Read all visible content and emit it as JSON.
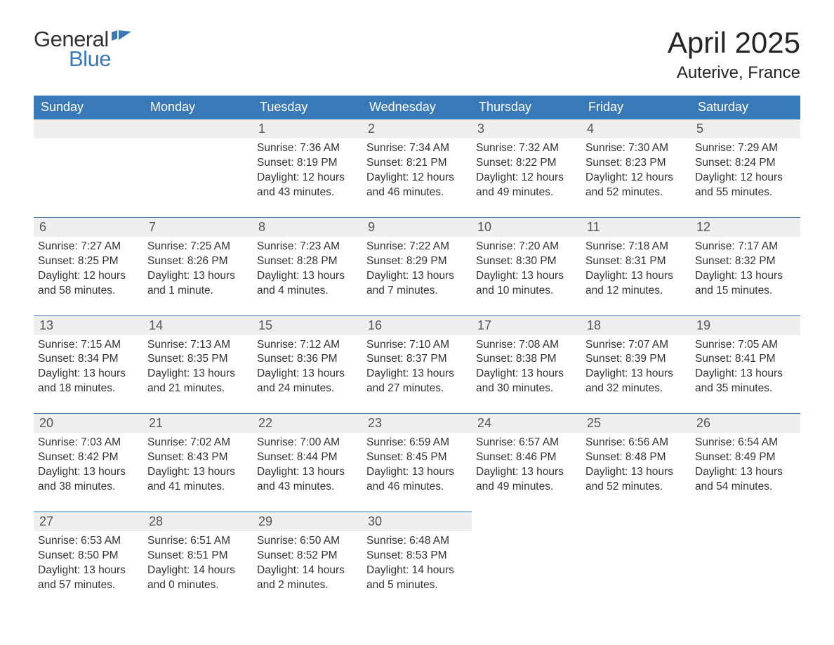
{
  "logo": {
    "word1": "General",
    "word2": "Blue"
  },
  "title": "April 2025",
  "location": "Auterive, France",
  "columns": [
    "Sunday",
    "Monday",
    "Tuesday",
    "Wednesday",
    "Thursday",
    "Friday",
    "Saturday"
  ],
  "colors": {
    "header_bg": "#3a79b7",
    "header_text": "#ffffff",
    "daynum_bg": "#eeeeee",
    "row_border": "#3a79b7",
    "text": "#333333",
    "logo_blue": "#3a79b7"
  },
  "type": "calendar-table",
  "weeks": [
    [
      null,
      null,
      {
        "n": "1",
        "sunrise": "Sunrise: 7:36 AM",
        "sunset": "Sunset: 8:19 PM",
        "day1": "Daylight: 12 hours",
        "day2": "and 43 minutes."
      },
      {
        "n": "2",
        "sunrise": "Sunrise: 7:34 AM",
        "sunset": "Sunset: 8:21 PM",
        "day1": "Daylight: 12 hours",
        "day2": "and 46 minutes."
      },
      {
        "n": "3",
        "sunrise": "Sunrise: 7:32 AM",
        "sunset": "Sunset: 8:22 PM",
        "day1": "Daylight: 12 hours",
        "day2": "and 49 minutes."
      },
      {
        "n": "4",
        "sunrise": "Sunrise: 7:30 AM",
        "sunset": "Sunset: 8:23 PM",
        "day1": "Daylight: 12 hours",
        "day2": "and 52 minutes."
      },
      {
        "n": "5",
        "sunrise": "Sunrise: 7:29 AM",
        "sunset": "Sunset: 8:24 PM",
        "day1": "Daylight: 12 hours",
        "day2": "and 55 minutes."
      }
    ],
    [
      {
        "n": "6",
        "sunrise": "Sunrise: 7:27 AM",
        "sunset": "Sunset: 8:25 PM",
        "day1": "Daylight: 12 hours",
        "day2": "and 58 minutes."
      },
      {
        "n": "7",
        "sunrise": "Sunrise: 7:25 AM",
        "sunset": "Sunset: 8:26 PM",
        "day1": "Daylight: 13 hours",
        "day2": "and 1 minute."
      },
      {
        "n": "8",
        "sunrise": "Sunrise: 7:23 AM",
        "sunset": "Sunset: 8:28 PM",
        "day1": "Daylight: 13 hours",
        "day2": "and 4 minutes."
      },
      {
        "n": "9",
        "sunrise": "Sunrise: 7:22 AM",
        "sunset": "Sunset: 8:29 PM",
        "day1": "Daylight: 13 hours",
        "day2": "and 7 minutes."
      },
      {
        "n": "10",
        "sunrise": "Sunrise: 7:20 AM",
        "sunset": "Sunset: 8:30 PM",
        "day1": "Daylight: 13 hours",
        "day2": "and 10 minutes."
      },
      {
        "n": "11",
        "sunrise": "Sunrise: 7:18 AM",
        "sunset": "Sunset: 8:31 PM",
        "day1": "Daylight: 13 hours",
        "day2": "and 12 minutes."
      },
      {
        "n": "12",
        "sunrise": "Sunrise: 7:17 AM",
        "sunset": "Sunset: 8:32 PM",
        "day1": "Daylight: 13 hours",
        "day2": "and 15 minutes."
      }
    ],
    [
      {
        "n": "13",
        "sunrise": "Sunrise: 7:15 AM",
        "sunset": "Sunset: 8:34 PM",
        "day1": "Daylight: 13 hours",
        "day2": "and 18 minutes."
      },
      {
        "n": "14",
        "sunrise": "Sunrise: 7:13 AM",
        "sunset": "Sunset: 8:35 PM",
        "day1": "Daylight: 13 hours",
        "day2": "and 21 minutes."
      },
      {
        "n": "15",
        "sunrise": "Sunrise: 7:12 AM",
        "sunset": "Sunset: 8:36 PM",
        "day1": "Daylight: 13 hours",
        "day2": "and 24 minutes."
      },
      {
        "n": "16",
        "sunrise": "Sunrise: 7:10 AM",
        "sunset": "Sunset: 8:37 PM",
        "day1": "Daylight: 13 hours",
        "day2": "and 27 minutes."
      },
      {
        "n": "17",
        "sunrise": "Sunrise: 7:08 AM",
        "sunset": "Sunset: 8:38 PM",
        "day1": "Daylight: 13 hours",
        "day2": "and 30 minutes."
      },
      {
        "n": "18",
        "sunrise": "Sunrise: 7:07 AM",
        "sunset": "Sunset: 8:39 PM",
        "day1": "Daylight: 13 hours",
        "day2": "and 32 minutes."
      },
      {
        "n": "19",
        "sunrise": "Sunrise: 7:05 AM",
        "sunset": "Sunset: 8:41 PM",
        "day1": "Daylight: 13 hours",
        "day2": "and 35 minutes."
      }
    ],
    [
      {
        "n": "20",
        "sunrise": "Sunrise: 7:03 AM",
        "sunset": "Sunset: 8:42 PM",
        "day1": "Daylight: 13 hours",
        "day2": "and 38 minutes."
      },
      {
        "n": "21",
        "sunrise": "Sunrise: 7:02 AM",
        "sunset": "Sunset: 8:43 PM",
        "day1": "Daylight: 13 hours",
        "day2": "and 41 minutes."
      },
      {
        "n": "22",
        "sunrise": "Sunrise: 7:00 AM",
        "sunset": "Sunset: 8:44 PM",
        "day1": "Daylight: 13 hours",
        "day2": "and 43 minutes."
      },
      {
        "n": "23",
        "sunrise": "Sunrise: 6:59 AM",
        "sunset": "Sunset: 8:45 PM",
        "day1": "Daylight: 13 hours",
        "day2": "and 46 minutes."
      },
      {
        "n": "24",
        "sunrise": "Sunrise: 6:57 AM",
        "sunset": "Sunset: 8:46 PM",
        "day1": "Daylight: 13 hours",
        "day2": "and 49 minutes."
      },
      {
        "n": "25",
        "sunrise": "Sunrise: 6:56 AM",
        "sunset": "Sunset: 8:48 PM",
        "day1": "Daylight: 13 hours",
        "day2": "and 52 minutes."
      },
      {
        "n": "26",
        "sunrise": "Sunrise: 6:54 AM",
        "sunset": "Sunset: 8:49 PM",
        "day1": "Daylight: 13 hours",
        "day2": "and 54 minutes."
      }
    ],
    [
      {
        "n": "27",
        "sunrise": "Sunrise: 6:53 AM",
        "sunset": "Sunset: 8:50 PM",
        "day1": "Daylight: 13 hours",
        "day2": "and 57 minutes."
      },
      {
        "n": "28",
        "sunrise": "Sunrise: 6:51 AM",
        "sunset": "Sunset: 8:51 PM",
        "day1": "Daylight: 14 hours",
        "day2": "and 0 minutes."
      },
      {
        "n": "29",
        "sunrise": "Sunrise: 6:50 AM",
        "sunset": "Sunset: 8:52 PM",
        "day1": "Daylight: 14 hours",
        "day2": "and 2 minutes."
      },
      {
        "n": "30",
        "sunrise": "Sunrise: 6:48 AM",
        "sunset": "Sunset: 8:53 PM",
        "day1": "Daylight: 14 hours",
        "day2": "and 5 minutes."
      },
      null,
      null,
      null
    ]
  ]
}
